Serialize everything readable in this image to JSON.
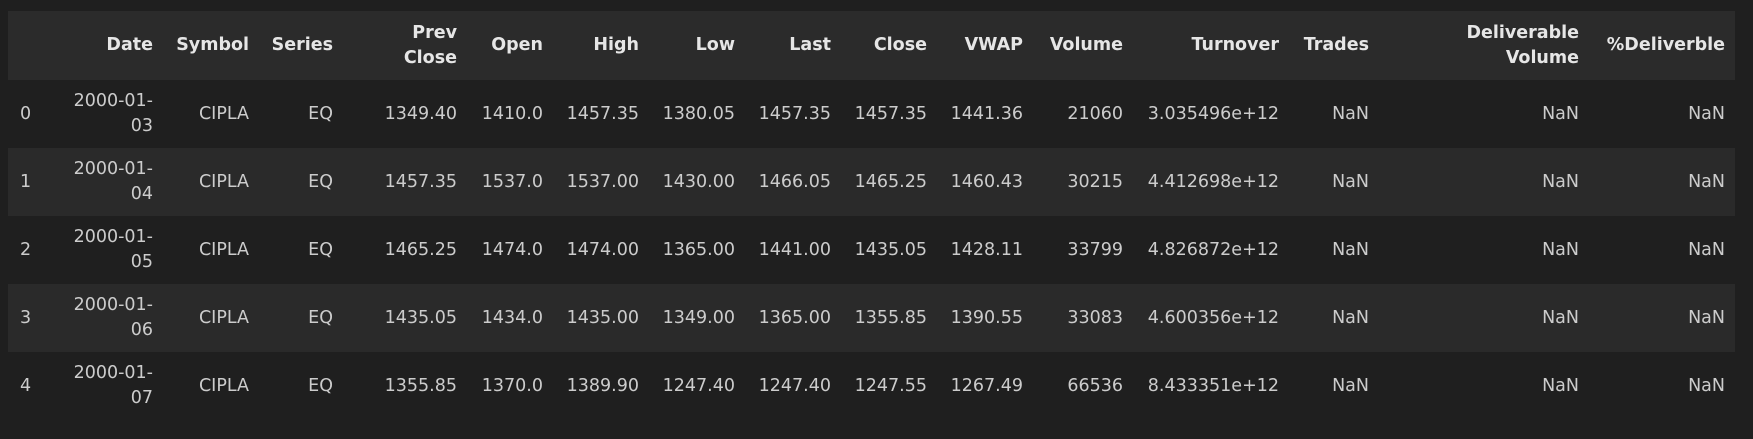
{
  "table": {
    "headers": [
      [
        ""
      ],
      [
        "Date"
      ],
      [
        "Symbol"
      ],
      [
        "Series"
      ],
      [
        "Prev",
        "Close"
      ],
      [
        "Open"
      ],
      [
        "High"
      ],
      [
        "Low"
      ],
      [
        "Last"
      ],
      [
        "Close"
      ],
      [
        "VWAP"
      ],
      [
        "Volume"
      ],
      [
        "Turnover"
      ],
      [
        "Trades"
      ],
      [
        "Deliverable",
        "Volume"
      ],
      [
        "%Deliverble"
      ]
    ],
    "rows": [
      [
        "0",
        [
          "2000-01-",
          "03"
        ],
        "CIPLA",
        "EQ",
        "1349.40",
        "1410.0",
        "1457.35",
        "1380.05",
        "1457.35",
        "1457.35",
        "1441.36",
        "21060",
        "3.035496e+12",
        "NaN",
        "NaN",
        "NaN"
      ],
      [
        "1",
        [
          "2000-01-",
          "04"
        ],
        "CIPLA",
        "EQ",
        "1457.35",
        "1537.0",
        "1537.00",
        "1430.00",
        "1466.05",
        "1465.25",
        "1460.43",
        "30215",
        "4.412698e+12",
        "NaN",
        "NaN",
        "NaN"
      ],
      [
        "2",
        [
          "2000-01-",
          "05"
        ],
        "CIPLA",
        "EQ",
        "1465.25",
        "1474.0",
        "1474.00",
        "1365.00",
        "1441.00",
        "1435.05",
        "1428.11",
        "33799",
        "4.826872e+12",
        "NaN",
        "NaN",
        "NaN"
      ],
      [
        "3",
        [
          "2000-01-",
          "06"
        ],
        "CIPLA",
        "EQ",
        "1435.05",
        "1434.0",
        "1435.00",
        "1349.00",
        "1365.00",
        "1355.85",
        "1390.55",
        "33083",
        "4.600356e+12",
        "NaN",
        "NaN",
        "NaN"
      ],
      [
        "4",
        [
          "2000-01-",
          "07"
        ],
        "CIPLA",
        "EQ",
        "1355.85",
        "1370.0",
        "1389.90",
        "1247.40",
        "1247.40",
        "1247.55",
        "1267.49",
        "66536",
        "8.433351e+12",
        "NaN",
        "NaN",
        "NaN"
      ]
    ]
  }
}
